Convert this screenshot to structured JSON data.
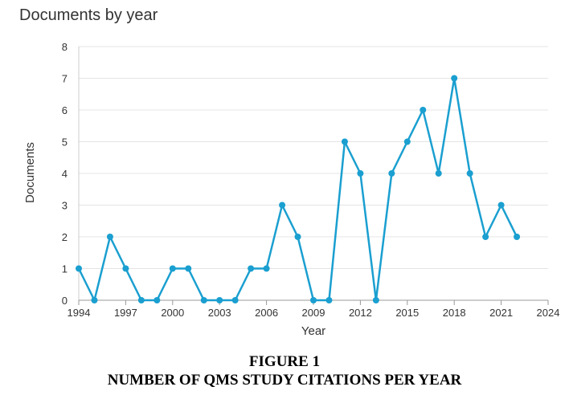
{
  "chart_data": {
    "type": "line",
    "title": "Documents by year",
    "xlabel": "Year",
    "ylabel": "Documents",
    "xlim": [
      1994,
      2024
    ],
    "ylim": [
      0,
      8
    ],
    "xticks": [
      1994,
      1997,
      2000,
      2003,
      2006,
      2009,
      2012,
      2015,
      2018,
      2021,
      2024
    ],
    "yticks": [
      0,
      1,
      2,
      3,
      4,
      5,
      6,
      7,
      8
    ],
    "grid": "horizontal",
    "series": [
      {
        "color": "#1a9fd0",
        "x": [
          1994,
          1995,
          1996,
          1997,
          1998,
          1999,
          2000,
          2001,
          2002,
          2003,
          2004,
          2005,
          2006,
          2007,
          2008,
          2009,
          2010,
          2011,
          2012,
          2013,
          2014,
          2015,
          2016,
          2017,
          2018,
          2019,
          2020,
          2021,
          2022
        ],
        "y": [
          1,
          0,
          2,
          1,
          0,
          0,
          1,
          1,
          0,
          0,
          0,
          1,
          1,
          3,
          2,
          0,
          0,
          5,
          4,
          0,
          4,
          5,
          6,
          4,
          7,
          4,
          2,
          3,
          2
        ]
      }
    ]
  },
  "figure_caption": {
    "label": "FIGURE 1",
    "text": "NUMBER OF QMS STUDY CITATIONS PER YEAR"
  }
}
